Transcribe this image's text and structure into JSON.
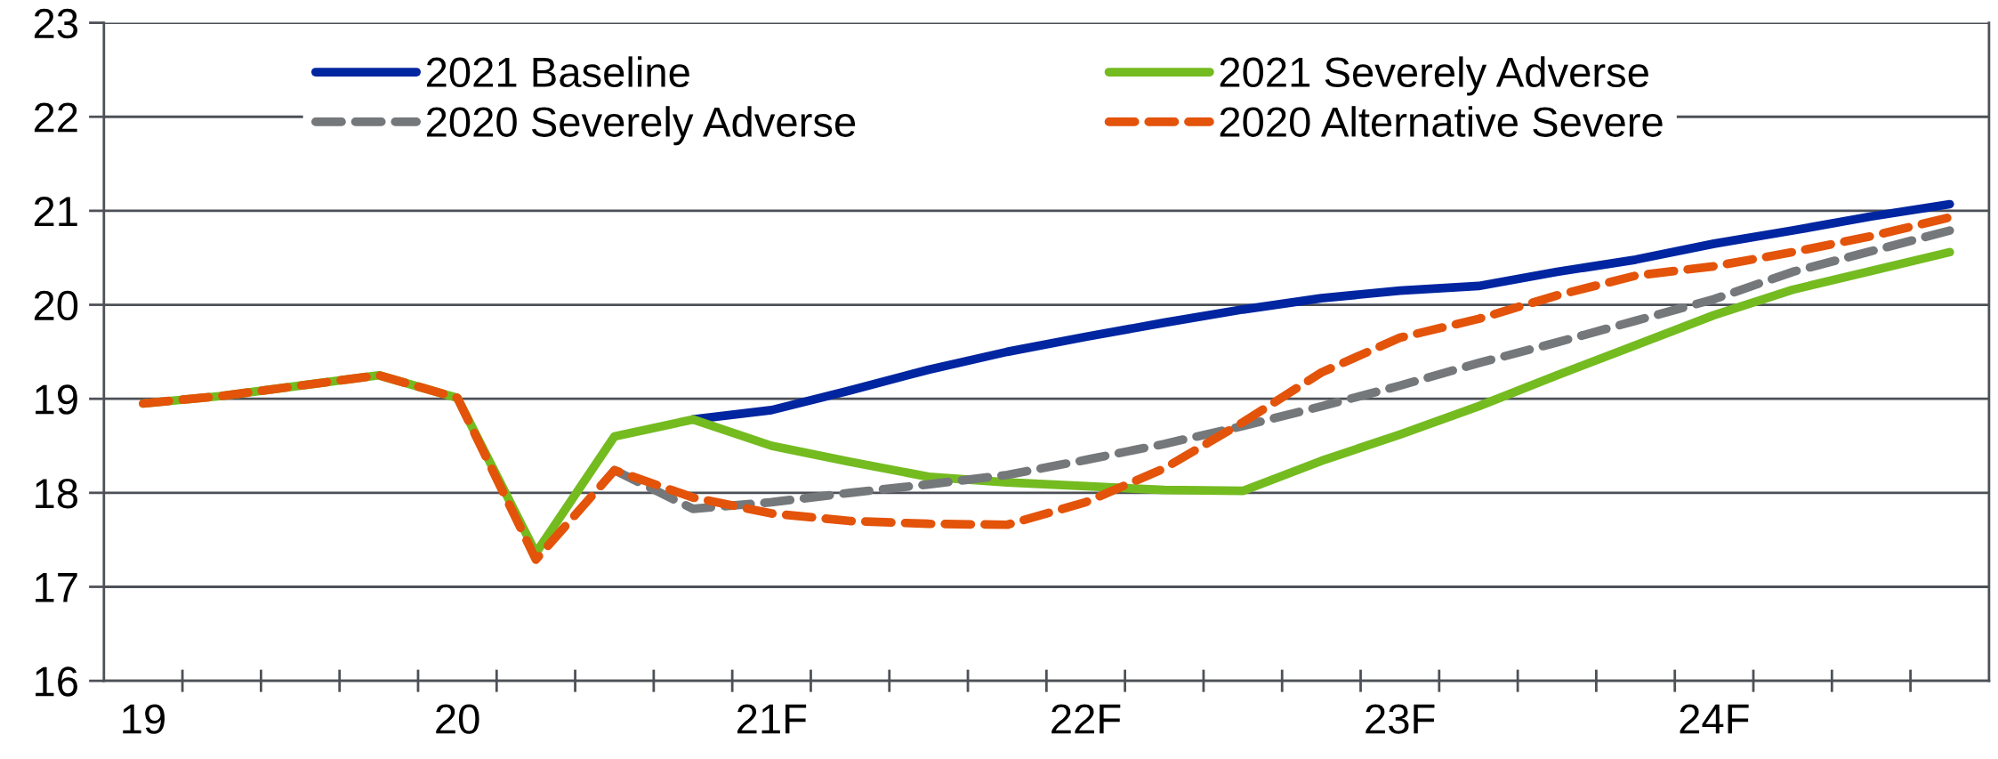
{
  "chart_data": {
    "type": "line",
    "categories": [
      "19",
      null,
      null,
      null,
      "20",
      null,
      null,
      null,
      "21F",
      null,
      null,
      null,
      "22F",
      null,
      null,
      null,
      "23F",
      null,
      null,
      null,
      "24F",
      null,
      null,
      null
    ],
    "series": [
      {
        "name": "2021 Baseline",
        "color": "#0025a0",
        "line_style": "solid",
        "values": [
          null,
          null,
          null,
          null,
          null,
          null,
          null,
          18.78,
          18.88,
          19.09,
          19.31,
          19.5,
          19.66,
          19.81,
          19.95,
          20.07,
          20.15,
          20.2,
          20.35,
          20.48,
          20.65,
          20.79,
          20.94,
          21.07
        ]
      },
      {
        "name": "2021 Severely Adverse",
        "color": "#74bb20",
        "line_style": "solid",
        "values": [
          18.95,
          19.03,
          19.14,
          19.25,
          19.01,
          17.36,
          18.6,
          18.78,
          18.5,
          18.33,
          18.17,
          18.11,
          18.07,
          18.03,
          18.02,
          18.34,
          18.62,
          18.92,
          19.25,
          19.57,
          19.89,
          20.16,
          20.36,
          20.56
        ]
      },
      {
        "name": "2020 Severely Adverse",
        "color": "#75787b",
        "line_style": "dashed",
        "values": [
          null,
          null,
          null,
          null,
          null,
          null,
          18.24,
          17.83,
          17.9,
          18.0,
          18.09,
          18.19,
          18.35,
          18.52,
          18.71,
          18.92,
          19.14,
          19.38,
          19.6,
          19.83,
          20.06,
          20.35,
          20.57,
          20.79
        ]
      },
      {
        "name": "2020 Alternative Severe",
        "color": "#e3530a",
        "line_style": "dashed",
        "values": [
          18.95,
          19.03,
          19.14,
          19.25,
          19.01,
          17.29,
          18.24,
          17.95,
          17.78,
          17.7,
          17.67,
          17.66,
          17.9,
          18.26,
          18.75,
          19.28,
          19.65,
          19.85,
          20.1,
          20.31,
          20.41,
          20.56,
          20.73,
          20.93
        ]
      }
    ],
    "ylim": [
      16,
      23
    ],
    "yticks": [
      16,
      17,
      18,
      19,
      20,
      21,
      22,
      23
    ],
    "grid": "y",
    "legend": "top",
    "marker": "none"
  }
}
